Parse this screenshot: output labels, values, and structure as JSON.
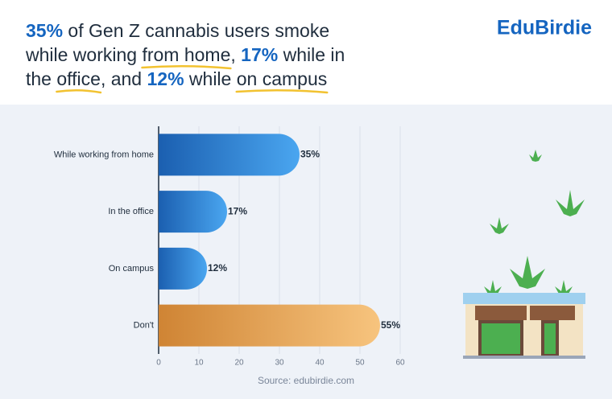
{
  "chart_data": {
    "type": "bar",
    "orientation": "horizontal",
    "brand": "EduBirdie",
    "title_lines": [
      [
        {
          "text": "35%",
          "style": "bold"
        },
        {
          "text": " of Gen Z cannabis users smoke"
        }
      ],
      [
        {
          "text": "while working "
        },
        {
          "text": "from home",
          "style": "underline"
        },
        {
          "text": ", "
        },
        {
          "text": "17%",
          "style": "bold"
        },
        {
          "text": " while in"
        }
      ],
      [
        {
          "text": "the "
        },
        {
          "text": "office",
          "style": "underline"
        },
        {
          "text": ", and "
        },
        {
          "text": "12%",
          "style": "bold"
        },
        {
          "text": " while "
        },
        {
          "text": "on campus",
          "style": "underline"
        }
      ]
    ],
    "categories": [
      "While working from home",
      "In the office",
      "On campus",
      "Don't"
    ],
    "values": [
      35,
      17,
      12,
      55
    ],
    "value_labels": [
      "35%",
      "17%",
      "12%",
      "55%"
    ],
    "colors": [
      [
        "#1b5fb0",
        "#4aa6f0"
      ],
      [
        "#1b5fb0",
        "#4aa6f0"
      ],
      [
        "#1b5fb0",
        "#4aa6f0"
      ],
      [
        "#cf8434",
        "#f7c47e"
      ]
    ],
    "xlim": [
      0,
      60
    ],
    "xticks": [
      0,
      10,
      20,
      30,
      40,
      50,
      60
    ],
    "grid": true,
    "source": "Source: edubirdie.com"
  }
}
